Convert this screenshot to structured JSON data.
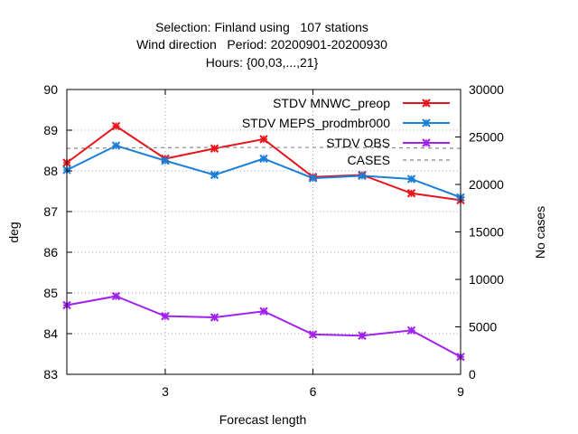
{
  "chart_data": {
    "type": "line",
    "title_lines": [
      "Selection: Finland using   107 stations",
      "Wind direction   Period: 20200901-20200930",
      "Hours: {00,03,...,21}"
    ],
    "xlabel": "Forecast length",
    "ylabel": "deg",
    "y2label": "No cases",
    "xlim": [
      1,
      9
    ],
    "ylim": [
      83,
      90
    ],
    "y2lim": [
      0,
      30000
    ],
    "x_ticks": [
      3,
      6,
      9
    ],
    "y_ticks": [
      83,
      84,
      85,
      86,
      87,
      88,
      89,
      90
    ],
    "y2_ticks": [
      0,
      5000,
      10000,
      15000,
      20000,
      25000,
      30000
    ],
    "grid": true,
    "legend_position": "top-right",
    "x": [
      1,
      2,
      3,
      4,
      5,
      6,
      7,
      8,
      9
    ],
    "series": [
      {
        "name": "STDV MNWC_preop",
        "axis": "y",
        "color": "#e8141c",
        "marker": "x",
        "values": [
          88.2,
          89.1,
          88.3,
          88.55,
          88.78,
          87.85,
          87.9,
          87.45,
          87.28
        ]
      },
      {
        "name": "STDV MEPS_prodmbr000",
        "axis": "y",
        "color": "#1c7fd8",
        "marker": "x",
        "values": [
          88.02,
          88.62,
          88.25,
          87.9,
          88.3,
          87.82,
          87.88,
          87.8,
          87.35
        ]
      },
      {
        "name": "STDV OBS",
        "axis": "y",
        "color": "#a020f0",
        "marker": "x",
        "values": [
          84.7,
          84.92,
          84.43,
          84.4,
          84.55,
          83.98,
          83.95,
          84.08,
          83.43
        ]
      },
      {
        "name": "CASES",
        "axis": "y2",
        "color": "#888888",
        "dash": true,
        "values": [
          23800,
          23850,
          23880,
          23900,
          23900,
          23900,
          23880,
          23850,
          23800
        ]
      }
    ]
  }
}
